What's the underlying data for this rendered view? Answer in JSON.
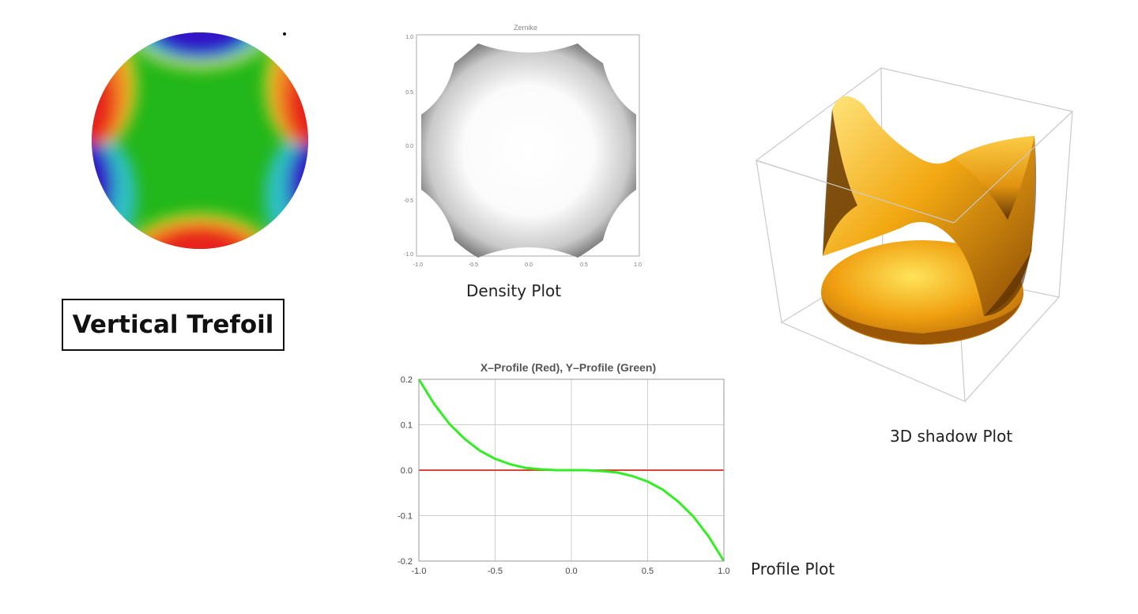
{
  "trefoil_label": "Vertical Trefoil",
  "density_plot": {
    "title": "Zernike",
    "caption": "Density Plot",
    "x_ticks": [
      "-1.0",
      "-0.5",
      "0.0",
      "0.5",
      "1.0"
    ],
    "y_ticks": [
      "1.0",
      "0.5",
      "0.0",
      "-0.5",
      "-1.0"
    ]
  },
  "shadow_plot": {
    "caption": "3D shadow Plot"
  },
  "profile_plot": {
    "caption": "Profile Plot"
  },
  "colors": {
    "map_green": "#22b71a",
    "map_red": "#e8201a",
    "map_blue": "#3016c8",
    "surface_gold": "#f2a812",
    "profile_red": "#d9453a",
    "profile_green": "#33ee22"
  },
  "chart_data": {
    "type": "line",
    "title": "X–Profile (Red), Y–Profile (Green)",
    "xlabel": "",
    "ylabel": "",
    "xlim": [
      -1.0,
      1.0
    ],
    "ylim": [
      -0.2,
      0.2
    ],
    "x_ticks": [
      -1.0,
      -0.5,
      0.0,
      0.5,
      1.0
    ],
    "x_tick_labels": [
      "-1.0",
      "-0.5",
      "0.0",
      "0.5",
      "1.0"
    ],
    "y_ticks": [
      0.2,
      0.1,
      0.0,
      -0.1,
      -0.2
    ],
    "y_tick_labels": [
      "0.2",
      "0.1",
      "0.0",
      "-0.1",
      "-0.2"
    ],
    "grid": true,
    "series": [
      {
        "name": "X–Profile",
        "color": "#d9453a",
        "x": [
          -1.0,
          -0.5,
          0.0,
          0.5,
          1.0
        ],
        "y": [
          0.0,
          0.0,
          0.0,
          0.0,
          0.0
        ]
      },
      {
        "name": "Y–Profile",
        "color": "#33ee22",
        "x": [
          -1.0,
          -0.9,
          -0.8,
          -0.7,
          -0.6,
          -0.5,
          -0.4,
          -0.3,
          -0.2,
          -0.1,
          0.0,
          0.1,
          0.2,
          0.3,
          0.4,
          0.5,
          0.6,
          0.7,
          0.8,
          0.9,
          1.0
        ],
        "y": [
          0.2,
          0.146,
          0.102,
          0.069,
          0.043,
          0.025,
          0.013,
          0.005,
          0.002,
          0.0,
          0.0,
          0.0,
          -0.002,
          -0.005,
          -0.013,
          -0.025,
          -0.043,
          -0.069,
          -0.102,
          -0.146,
          -0.2
        ]
      }
    ]
  }
}
